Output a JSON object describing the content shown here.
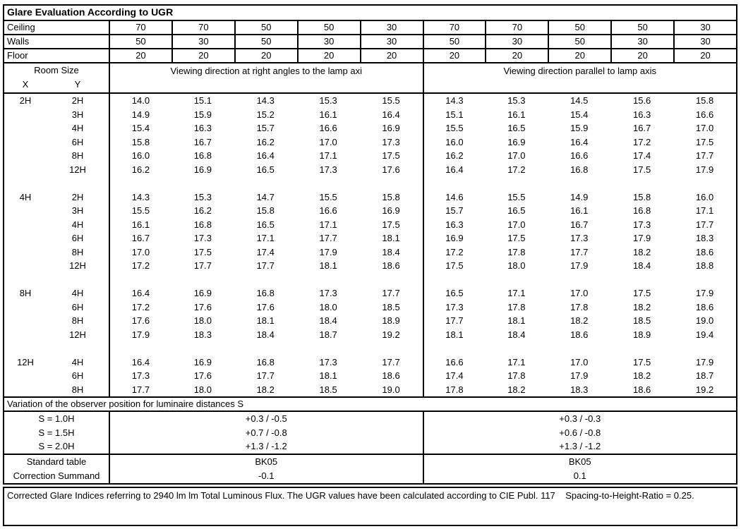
{
  "title": "Glare Evaluation According to UGR",
  "surface_rows": [
    {
      "label": "Ceiling",
      "values": [
        "70",
        "70",
        "50",
        "50",
        "30",
        "70",
        "70",
        "50",
        "50",
        "30"
      ]
    },
    {
      "label": "Walls",
      "values": [
        "50",
        "30",
        "50",
        "30",
        "30",
        "50",
        "30",
        "50",
        "30",
        "30"
      ]
    },
    {
      "label": "Floor",
      "values": [
        "20",
        "20",
        "20",
        "20",
        "20",
        "20",
        "20",
        "20",
        "20",
        "20"
      ]
    }
  ],
  "room_size": {
    "label": "Room Size",
    "x_label": "X",
    "y_label": "Y"
  },
  "group_headers": [
    "Viewing direction at right angles to the lamp axi",
    "Viewing direction parallel to lamp axis"
  ],
  "ugr_groups": [
    {
      "x": "2H",
      "rows": [
        {
          "y": "2H",
          "right_angle": [
            "14.0",
            "15.1",
            "14.3",
            "15.3",
            "15.5"
          ],
          "parallel": [
            "14.3",
            "15.3",
            "14.5",
            "15.6",
            "15.8"
          ]
        },
        {
          "y": "3H",
          "right_angle": [
            "14.9",
            "15.9",
            "15.2",
            "16.1",
            "16.4"
          ],
          "parallel": [
            "15.1",
            "16.1",
            "15.4",
            "16.3",
            "16.6"
          ]
        },
        {
          "y": "4H",
          "right_angle": [
            "15.4",
            "16.3",
            "15.7",
            "16.6",
            "16.9"
          ],
          "parallel": [
            "15.5",
            "16.5",
            "15.9",
            "16.7",
            "17.0"
          ]
        },
        {
          "y": "6H",
          "right_angle": [
            "15.8",
            "16.7",
            "16.2",
            "17.0",
            "17.3"
          ],
          "parallel": [
            "16.0",
            "16.9",
            "16.4",
            "17.2",
            "17.5"
          ]
        },
        {
          "y": "8H",
          "right_angle": [
            "16.0",
            "16.8",
            "16.4",
            "17.1",
            "17.5"
          ],
          "parallel": [
            "16.2",
            "17.0",
            "16.6",
            "17.4",
            "17.7"
          ]
        },
        {
          "y": "12H",
          "right_angle": [
            "16.2",
            "16.9",
            "16.5",
            "17.3",
            "17.6"
          ],
          "parallel": [
            "16.4",
            "17.2",
            "16.8",
            "17.5",
            "17.9"
          ]
        }
      ]
    },
    {
      "x": "4H",
      "rows": [
        {
          "y": "2H",
          "right_angle": [
            "14.3",
            "15.3",
            "14.7",
            "15.5",
            "15.8"
          ],
          "parallel": [
            "14.6",
            "15.5",
            "14.9",
            "15.8",
            "16.0"
          ]
        },
        {
          "y": "3H",
          "right_angle": [
            "15.5",
            "16.2",
            "15.8",
            "16.6",
            "16.9"
          ],
          "parallel": [
            "15.7",
            "16.5",
            "16.1",
            "16.8",
            "17.1"
          ]
        },
        {
          "y": "4H",
          "right_angle": [
            "16.1",
            "16.8",
            "16.5",
            "17.1",
            "17.5"
          ],
          "parallel": [
            "16.3",
            "17.0",
            "16.7",
            "17.3",
            "17.7"
          ]
        },
        {
          "y": "6H",
          "right_angle": [
            "16.7",
            "17.3",
            "17.1",
            "17.7",
            "18.1"
          ],
          "parallel": [
            "16.9",
            "17.5",
            "17.3",
            "17.9",
            "18.3"
          ]
        },
        {
          "y": "8H",
          "right_angle": [
            "17.0",
            "17.5",
            "17.4",
            "17.9",
            "18.4"
          ],
          "parallel": [
            "17.2",
            "17.8",
            "17.7",
            "18.2",
            "18.6"
          ]
        },
        {
          "y": "12H",
          "right_angle": [
            "17.2",
            "17.7",
            "17.7",
            "18.1",
            "18.6"
          ],
          "parallel": [
            "17.5",
            "18.0",
            "17.9",
            "18.4",
            "18.8"
          ]
        }
      ]
    },
    {
      "x": "8H",
      "rows": [
        {
          "y": "4H",
          "right_angle": [
            "16.4",
            "16.9",
            "16.8",
            "17.3",
            "17.7"
          ],
          "parallel": [
            "16.5",
            "17.1",
            "17.0",
            "17.5",
            "17.9"
          ]
        },
        {
          "y": "6H",
          "right_angle": [
            "17.2",
            "17.6",
            "17.6",
            "18.0",
            "18.5"
          ],
          "parallel": [
            "17.3",
            "17.8",
            "17.8",
            "18.2",
            "18.6"
          ]
        },
        {
          "y": "8H",
          "right_angle": [
            "17.6",
            "18.0",
            "18.1",
            "18.4",
            "18.9"
          ],
          "parallel": [
            "17.7",
            "18.1",
            "18.2",
            "18.5",
            "19.0"
          ]
        },
        {
          "y": "12H",
          "right_angle": [
            "17.9",
            "18.3",
            "18.4",
            "18.7",
            "19.2"
          ],
          "parallel": [
            "18.1",
            "18.4",
            "18.6",
            "18.9",
            "19.4"
          ]
        }
      ]
    },
    {
      "x": "12H",
      "rows": [
        {
          "y": "4H",
          "right_angle": [
            "16.4",
            "16.9",
            "16.8",
            "17.3",
            "17.7"
          ],
          "parallel": [
            "16.6",
            "17.1",
            "17.0",
            "17.5",
            "17.9"
          ]
        },
        {
          "y": "6H",
          "right_angle": [
            "17.3",
            "17.6",
            "17.7",
            "18.1",
            "18.6"
          ],
          "parallel": [
            "17.4",
            "17.8",
            "17.9",
            "18.2",
            "18.7"
          ]
        },
        {
          "y": "8H",
          "right_angle": [
            "17.7",
            "18.0",
            "18.2",
            "18.5",
            "19.0"
          ],
          "parallel": [
            "17.8",
            "18.2",
            "18.3",
            "18.6",
            "19.2"
          ]
        }
      ]
    }
  ],
  "variation_header": "Variation of the observer position for luminaire distances S",
  "variation_rows": [
    {
      "label": "S = 1.0H",
      "left": "+0.3 / -0.5",
      "right": "+0.3 / -0.3"
    },
    {
      "label": "S = 1.5H",
      "left": "+0.7 / -0.8",
      "right": "+0.6 / -0.8"
    },
    {
      "label": "S = 2.0H",
      "left": "+1.3 / -1.2",
      "right": "+1.3 / -1.2"
    }
  ],
  "summary_rows": [
    {
      "label": "Standard table",
      "left": "BK05",
      "right": "BK05"
    },
    {
      "label": "Correction Summand",
      "left": "-0.1",
      "right": "0.1"
    }
  ],
  "footer": "Corrected Glare Indices referring to 2940 lm lm Total Luminous Flux. The UGR values have been calculated according to CIE Publ. 117    Spacing-to-Height-Ratio = 0.25."
}
